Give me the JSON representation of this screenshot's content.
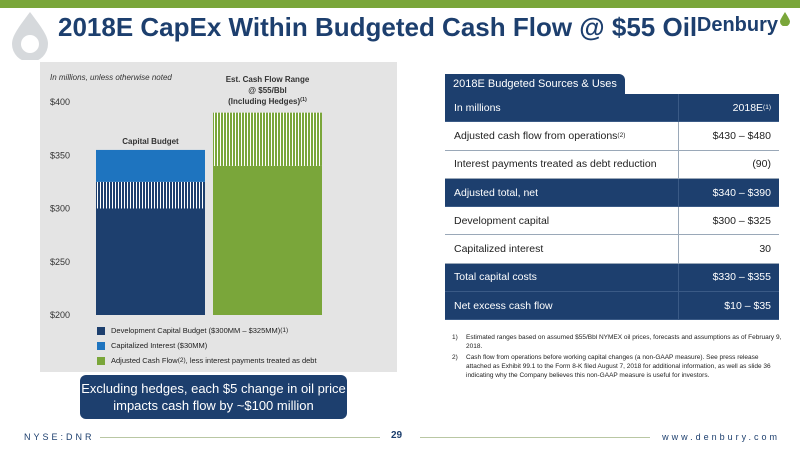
{
  "slide": {
    "title": "2018E CapEx Within Budgeted Cash Flow @ $55 Oil",
    "brand": "Denbury",
    "footer_left": "NYSE:DNR",
    "page_number": "29",
    "footer_right": "www.denbury.com"
  },
  "chart_note": "In millions, unless otherwise noted",
  "callout": {
    "line1": "Excluding hedges, each $5 change in oil price",
    "line2": "impacts cash flow by ~$100 million"
  },
  "colors": {
    "dark_blue": "#1d3f6e",
    "mid_blue": "#1e74bf",
    "green": "#7aa63a",
    "panel_gray": "#e4e4e4"
  },
  "chart_data": {
    "type": "bar",
    "stacked": true,
    "ylim": [
      200,
      400
    ],
    "yticks": [
      "$400",
      "$350",
      "$300",
      "$250",
      "$200"
    ],
    "ytick_values": [
      400,
      350,
      300,
      250,
      200
    ],
    "bars": [
      {
        "label": "Capital Budget",
        "segments": [
          {
            "series": "dev_capital",
            "from": 200,
            "to": 300,
            "pattern": "solid"
          },
          {
            "series": "dev_capital",
            "from": 300,
            "to": 325,
            "pattern": "striped"
          },
          {
            "series": "cap_interest",
            "from": 325,
            "to": 355,
            "pattern": "solid"
          }
        ]
      },
      {
        "label_line1": "Est. Cash Flow Range",
        "label_line2": "@ $55/Bbl",
        "label_line3": "(Including Hedges)",
        "label_sup": "(1)",
        "segments": [
          {
            "series": "adj_cash_flow",
            "from": 200,
            "to": 340,
            "pattern": "solid"
          },
          {
            "series": "adj_cash_flow",
            "from": 340,
            "to": 390,
            "pattern": "striped"
          }
        ]
      }
    ],
    "legend": [
      {
        "key": "dev_capital",
        "text": "Development Capital Budget ($300MM – $325MM)",
        "sup": "(1)",
        "color": "#1d3f6e"
      },
      {
        "key": "cap_interest",
        "text": "Capitalized Interest ($30MM)",
        "sup": "",
        "color": "#1e74bf"
      },
      {
        "key": "adj_cash_flow",
        "text": "Adjusted Cash Flow",
        "sup": "(2)",
        "text_after": ", less interest payments treated as debt",
        "color": "#7aa63a"
      }
    ]
  },
  "table": {
    "tab_title": "2018E Budgeted Sources & Uses",
    "rows": [
      {
        "label": "In millions",
        "label_sup": "",
        "value": "2018E",
        "value_sup": "(1)",
        "style": "dark"
      },
      {
        "label": "Adjusted cash flow from operations",
        "label_sup": "(2)",
        "value": "$430 – $480",
        "value_sup": "",
        "style": "light"
      },
      {
        "label": "Interest payments treated as debt reduction",
        "label_sup": "",
        "value": "(90)",
        "value_sup": "",
        "style": "light"
      },
      {
        "label": "Adjusted total, net",
        "label_sup": "",
        "value": "$340 – $390",
        "value_sup": "",
        "style": "dark"
      },
      {
        "label": "Development capital",
        "label_sup": "",
        "value": "$300 – $325",
        "value_sup": "",
        "style": "light"
      },
      {
        "label": "Capitalized interest",
        "label_sup": "",
        "value": "30",
        "value_sup": "",
        "style": "light"
      },
      {
        "label": "Total capital costs",
        "label_sup": "",
        "value": "$330 – $355",
        "value_sup": "",
        "style": "dark"
      },
      {
        "label": "Net excess cash flow",
        "label_sup": "",
        "value": "$10 – $35",
        "value_sup": "",
        "style": "dark"
      }
    ]
  },
  "footnotes": [
    {
      "num": "1)",
      "text": "Estimated ranges based on assumed $55/Bbl NYMEX oil prices, forecasts and assumptions as of February 9, 2018."
    },
    {
      "num": "2)",
      "text": "Cash flow from operations before working capital changes (a non-GAAP measure). See press release attached as Exhibit 99.1 to the Form 8-K filed August 7, 2018 for additional information, as well as slide 36 indicating why the Company believes this non-GAAP measure is useful for investors."
    }
  ]
}
